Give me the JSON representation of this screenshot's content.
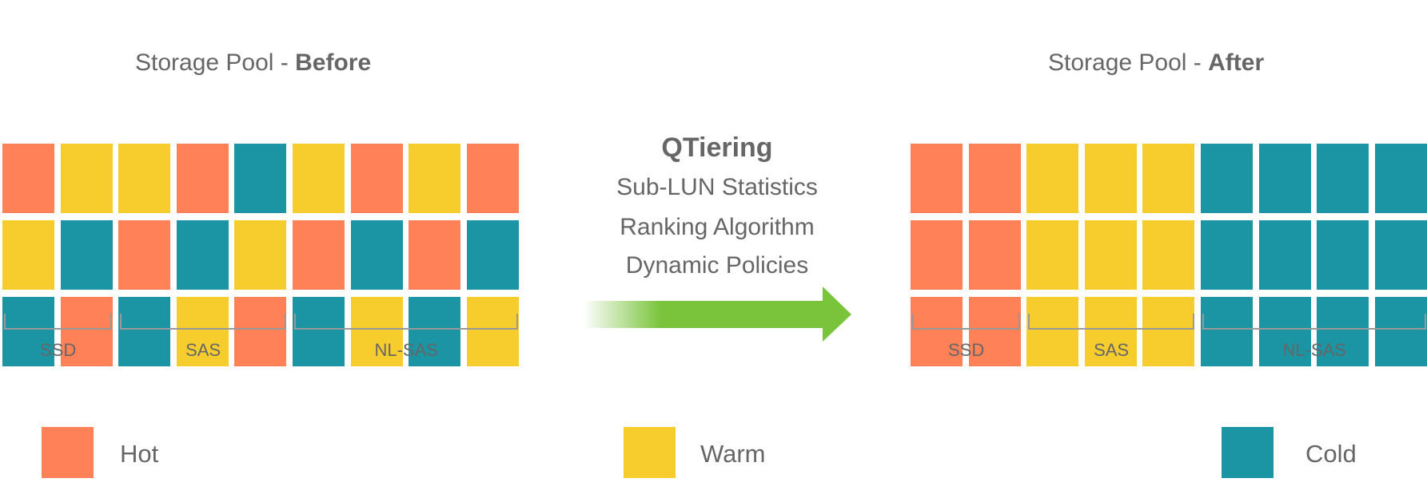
{
  "colors": {
    "hot": "#FF8157",
    "warm": "#F7CD2E",
    "cold": "#1B94A3",
    "arrow": "#7AC43C",
    "text": "#666666",
    "bracket": "#999999"
  },
  "before": {
    "title_prefix": "Storage Pool - ",
    "title_bold": "Before",
    "grid": [
      [
        "hot",
        "warm",
        "warm",
        "hot",
        "cold",
        "warm",
        "hot",
        "warm",
        "hot"
      ],
      [
        "warm",
        "cold",
        "hot",
        "cold",
        "warm",
        "hot",
        "cold",
        "hot",
        "cold"
      ],
      [
        "cold",
        "hot",
        "cold",
        "warm",
        "hot",
        "cold",
        "warm",
        "cold",
        "warm"
      ]
    ]
  },
  "after": {
    "title_prefix": "Storage Pool - ",
    "title_bold": "After",
    "grid": [
      [
        "hot",
        "hot",
        "warm",
        "warm",
        "warm",
        "cold",
        "cold",
        "cold",
        "cold"
      ],
      [
        "hot",
        "hot",
        "warm",
        "warm",
        "warm",
        "cold",
        "cold",
        "cold",
        "cold"
      ],
      [
        "hot",
        "hot",
        "warm",
        "warm",
        "warm",
        "cold",
        "cold",
        "cold",
        "cold"
      ]
    ]
  },
  "tiers": [
    {
      "label": "SSD",
      "columns": 2
    },
    {
      "label": "SAS",
      "columns": 3
    },
    {
      "label": "NL-SAS",
      "columns": 4
    }
  ],
  "process": {
    "title": "QTiering",
    "lines": [
      "Sub-LUN Statistics",
      "Ranking Algorithm",
      "Dynamic Policies"
    ],
    "arrow_icon": "right-arrow-icon"
  },
  "legend": [
    {
      "key": "hot",
      "label": "Hot"
    },
    {
      "key": "warm",
      "label": "Warm"
    },
    {
      "key": "cold",
      "label": "Cold"
    }
  ]
}
